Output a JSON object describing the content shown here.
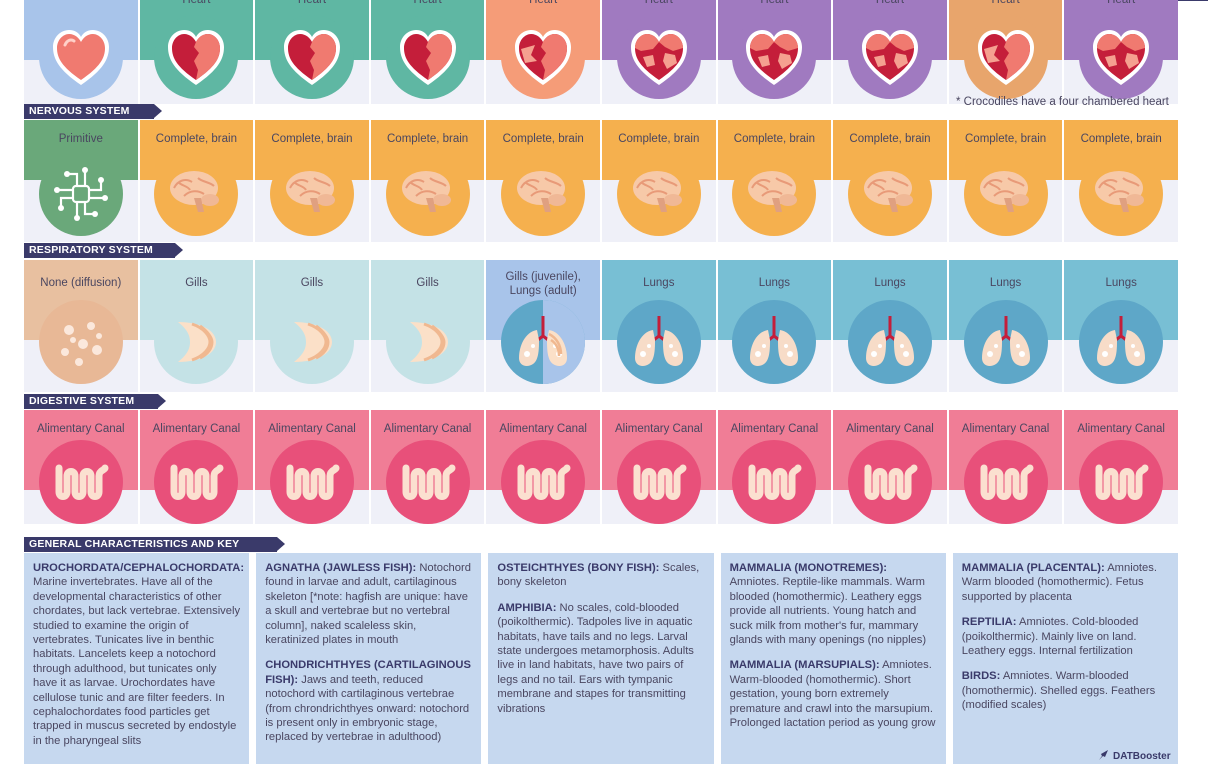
{
  "heart_row": {
    "cells": [
      {
        "label": "",
        "top": "#a8c4ea",
        "circle": "#a8c4ea",
        "chambers": 1
      },
      {
        "label": "Heart",
        "top": "#5fb7a3",
        "circle": "#5fb7a3",
        "chambers": 2
      },
      {
        "label": "Heart",
        "top": "#5fb7a3",
        "circle": "#5fb7a3",
        "chambers": 2
      },
      {
        "label": "Heart",
        "top": "#5fb7a3",
        "circle": "#5fb7a3",
        "chambers": 2
      },
      {
        "label": "Heart",
        "top": "#f59c78",
        "circle": "#f59c78",
        "chambers": 3
      },
      {
        "label": "Heart",
        "top": "#a07ac0",
        "circle": "#a07ac0",
        "chambers": 4
      },
      {
        "label": "Heart",
        "top": "#a07ac0",
        "circle": "#a07ac0",
        "chambers": 4
      },
      {
        "label": "Heart",
        "top": "#a07ac0",
        "circle": "#a07ac0",
        "chambers": 4
      },
      {
        "label": "Heart",
        "top": "#e8a56c",
        "circle": "#e8a56c",
        "chambers": 3
      },
      {
        "label": "Heart",
        "top": "#a07ac0",
        "circle": "#a07ac0",
        "chambers": 4
      }
    ],
    "note": "* Crocodiles have a four chambered heart"
  },
  "nervous": {
    "title": "NERVOUS SYSTEM",
    "cells": [
      {
        "label": "Primitive",
        "top": "#6aa87a",
        "icon": "circuit-icon"
      },
      {
        "label": "Complete, brain",
        "top": "#f5b04e",
        "icon": "brain-icon"
      },
      {
        "label": "Complete, brain",
        "top": "#f5b04e",
        "icon": "brain-icon"
      },
      {
        "label": "Complete, brain",
        "top": "#f5b04e",
        "icon": "brain-icon"
      },
      {
        "label": "Complete, brain",
        "top": "#f5b04e",
        "icon": "brain-icon"
      },
      {
        "label": "Complete, brain",
        "top": "#f5b04e",
        "icon": "brain-icon"
      },
      {
        "label": "Complete, brain",
        "top": "#f5b04e",
        "icon": "brain-icon"
      },
      {
        "label": "Complete, brain",
        "top": "#f5b04e",
        "icon": "brain-icon"
      },
      {
        "label": "Complete, brain",
        "top": "#f5b04e",
        "icon": "brain-icon"
      },
      {
        "label": "Complete, brain",
        "top": "#f5b04e",
        "icon": "brain-icon"
      }
    ]
  },
  "respiratory": {
    "title": "RESPIRATORY SYSTEM",
    "cells": [
      {
        "label": "None (diffusion)",
        "top": "#e8c0a0",
        "circle": "#e8b896",
        "icon": "diffusion-icon"
      },
      {
        "label": "Gills",
        "top": "#c4e2e6",
        "circle": "#c4e2e6",
        "icon": "gills-icon"
      },
      {
        "label": "Gills",
        "top": "#c4e2e6",
        "circle": "#c4e2e6",
        "icon": "gills-icon"
      },
      {
        "label": "Gills",
        "top": "#c4e2e6",
        "circle": "#c4e2e6",
        "icon": "gills-icon"
      },
      {
        "label": "Gills (juvenile), Lungs (adult)",
        "top": "#a8c4ea",
        "circle": "#5ea7c8",
        "icon": "gills-lungs-icon"
      },
      {
        "label": "Lungs",
        "top": "#78bfd4",
        "circle": "#5ea7c8",
        "icon": "lungs-icon"
      },
      {
        "label": "Lungs",
        "top": "#78bfd4",
        "circle": "#5ea7c8",
        "icon": "lungs-icon"
      },
      {
        "label": "Lungs",
        "top": "#78bfd4",
        "circle": "#5ea7c8",
        "icon": "lungs-icon"
      },
      {
        "label": "Lungs",
        "top": "#78bfd4",
        "circle": "#5ea7c8",
        "icon": "lungs-icon"
      },
      {
        "label": "Lungs",
        "top": "#78bfd4",
        "circle": "#5ea7c8",
        "icon": "lungs-icon"
      }
    ]
  },
  "digestive": {
    "title": "DIGESTIVE SYSTEM",
    "cells": [
      {
        "label": "Alimentary Canal"
      },
      {
        "label": "Alimentary Canal"
      },
      {
        "label": "Alimentary Canal"
      },
      {
        "label": "Alimentary Canal"
      },
      {
        "label": "Alimentary Canal"
      },
      {
        "label": "Alimentary Canal"
      },
      {
        "label": "Alimentary Canal"
      },
      {
        "label": "Alimentary Canal"
      },
      {
        "label": "Alimentary Canal"
      },
      {
        "label": "Alimentary Canal"
      }
    ],
    "top_color": "#f07d96",
    "circle_color": "#e8507a"
  },
  "general": {
    "title": "GENERAL CHARACTERISTICS AND KEY WORDS",
    "columns": [
      [
        {
          "head": "UROCHORDATA/CEPHALOCHORDATA:",
          "body": "Marine invertebrates. Have all of the developmental characteristics of other chordates, but lack vertebrae. Extensively studied to examine the origin of vertebrates. Tunicates live in benthic habitats. Lancelets keep a notochord through adulthood, but tunicates only have it as larvae. Urochordates have cellulose tunic and are filter feeders. In cephalochordates food particles get trapped in muscus secreted by endostyle in the pharyngeal slits"
        }
      ],
      [
        {
          "head": "AGNATHA (JAWLESS FISH):",
          "body": "Notochord found in larvae and adult, cartilaginous skeleton [*note: hagfish are unique: have a skull and vertebrae but no vertebral column], naked scaleless skin, keratinized plates in mouth"
        },
        {
          "head": "CHONDRICHTHYES (CARTILAGINOUS FISH):",
          "body": "Jaws and teeth, reduced notochord with cartilaginous vertebrae (from chrondrichthyes onward: notochord is present only in embryonic stage, replaced by vertebrae in adulthood)"
        }
      ],
      [
        {
          "head": "OSTEICHTHYES (BONY FISH):",
          "body": "Scales, bony skeleton"
        },
        {
          "head": "AMPHIBIA:",
          "body": "No scales, cold-blooded (poikolthermic). Tadpoles live in aquatic habitats, have tails and no legs. Larval state undergoes metamorphosis. Adults live in land habitats, have two pairs of legs and no tail. Ears with tympanic membrane and stapes for transmitting vibrations"
        }
      ],
      [
        {
          "head": "MAMMALIA (MONOTREMES):",
          "body": "Amniotes. Reptile-like mammals. Warm blooded (homothermic). Leathery eggs provide all nutrients. Young hatch and suck milk from mother's fur, mammary glands with many openings (no nipples)"
        },
        {
          "head": "MAMMALIA (MARSUPIALS):",
          "body": "Amniotes. Warm-blooded (homothermic). Short gestation, young born extremely premature and crawl into the marsupium. Prolonged lactation period as young grow"
        }
      ],
      [
        {
          "head": "MAMMALIA (PLACENTAL):",
          "body": "Amniotes. Warm blooded (homothermic). Fetus supported by placenta"
        },
        {
          "head": "REPTILIA:",
          "body": "Amniotes. Cold-blooded (poikolthermic). Mainly live on land. Leathery eggs. Internal fertilization"
        },
        {
          "head": "BIRDS:",
          "body": "Amniotes. Warm-blooded (homothermic). Shelled eggs. Feathers (modified scales)"
        }
      ]
    ]
  },
  "brand": {
    "name": "DATBooster",
    "icon": "rocket-icon"
  },
  "colors": {
    "section_tag": "#3a3a6a",
    "info_bg": "#c6d8ef",
    "cell_bottom": "#eff0f8"
  }
}
